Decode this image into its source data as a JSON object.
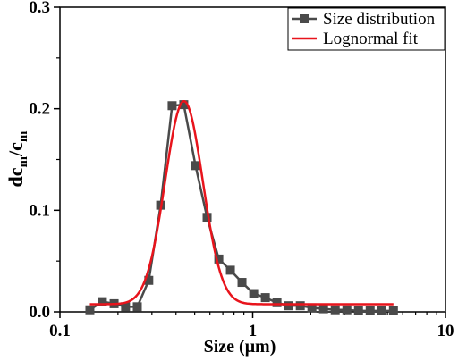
{
  "chart_data": {
    "type": "line",
    "xlabel": "Size (μm)",
    "ylabel": "dcm/cm",
    "ylabel_main": "dc",
    "ylabel_sub1": "m",
    "ylabel_mid": "/c",
    "ylabel_sub2": "m",
    "x_scale": "log",
    "xlim": [
      0.1,
      10
    ],
    "ylim": [
      0,
      0.3
    ],
    "x_ticks": [
      0.1,
      1,
      10
    ],
    "x_tick_labels": [
      "0.1",
      "1",
      "10"
    ],
    "y_ticks": [
      0,
      0.1,
      0.2,
      0.3
    ],
    "y_tick_labels": [
      "0.0",
      "0.1",
      "0.2",
      "0.3"
    ],
    "grid": false,
    "legend_position": "top-right",
    "series": [
      {
        "name": "Size distribution",
        "color": "#4a4a4a",
        "marker": "square",
        "x": [
          0.143,
          0.166,
          0.191,
          0.219,
          0.252,
          0.289,
          0.333,
          0.382,
          0.439,
          0.505,
          0.58,
          0.667,
          0.766,
          0.88,
          1.012,
          1.163,
          1.336,
          1.536,
          1.765,
          2.028,
          2.331,
          2.679,
          3.079,
          3.538,
          4.066,
          4.673,
          5.37
        ],
        "y": [
          0.002,
          0.01,
          0.008,
          0.005,
          0.005,
          0.031,
          0.105,
          0.203,
          0.204,
          0.144,
          0.093,
          0.052,
          0.041,
          0.029,
          0.018,
          0.014,
          0.009,
          0.006,
          0.006,
          0.004,
          0.003,
          0.002,
          0.002,
          0.001,
          0.001,
          0.001,
          0.001
        ]
      },
      {
        "name": "Lognormal fit",
        "color": "#e8141c",
        "marker": "none",
        "baseline": 0.0075,
        "amplitude": 0.2,
        "center": 0.44,
        "sigma_ln": 0.225,
        "x_range": [
          0.143,
          5.37
        ]
      }
    ]
  }
}
